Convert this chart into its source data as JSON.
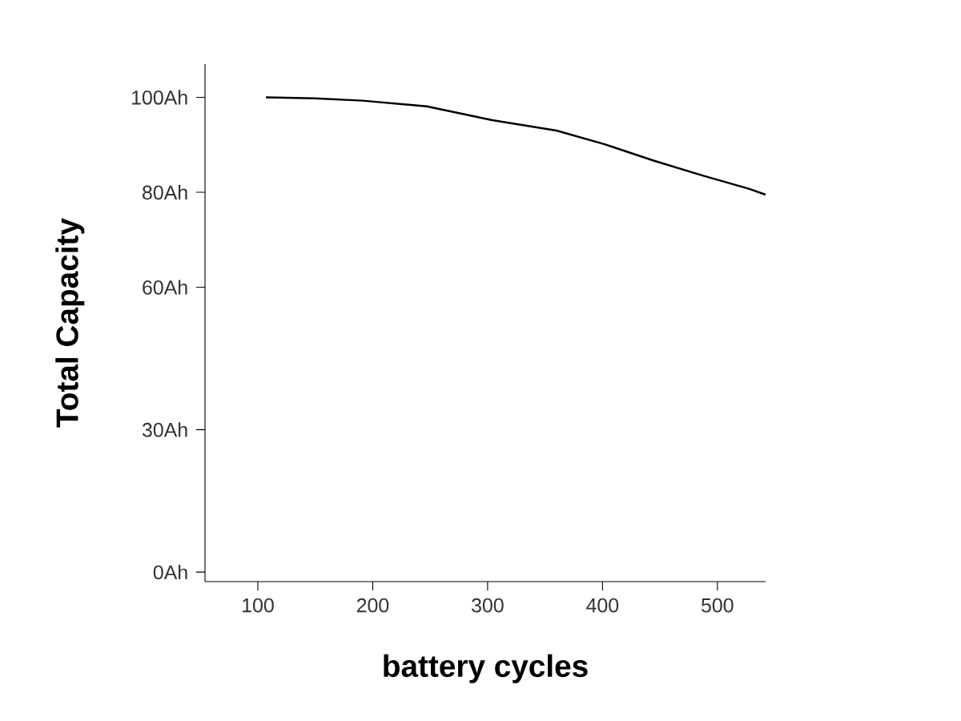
{
  "chart_data": {
    "type": "line",
    "xlabel": "battery cycles",
    "ylabel": "Total Capacity",
    "xlim": [
      54,
      542
    ],
    "xticks": [
      100,
      200,
      300,
      400,
      500
    ],
    "ylim": [
      -2,
      107
    ],
    "yticks": [
      {
        "value": 0,
        "label": "0Ah"
      },
      {
        "value": 30,
        "label": "30Ah"
      },
      {
        "value": 60,
        "label": "60Ah"
      },
      {
        "value": 80,
        "label": "80Ah"
      },
      {
        "value": 100,
        "label": "100Ah"
      }
    ],
    "series": [
      {
        "color": "#000000",
        "x": [
          107,
          149,
          191,
          247,
          304,
          360,
          402,
          444,
          486,
          528,
          542
        ],
        "values": [
          100.0,
          99.8,
          99.3,
          98.1,
          95.2,
          93.0,
          90.1,
          86.7,
          83.6,
          80.7,
          79.5
        ]
      }
    ],
    "grid": false,
    "marker": "none",
    "line_style": "solid"
  }
}
